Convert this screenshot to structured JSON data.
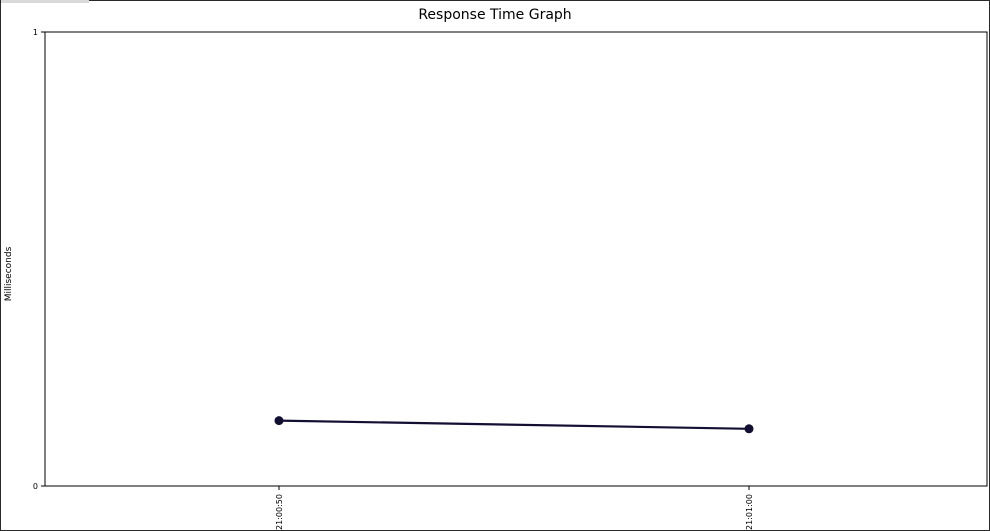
{
  "chart_data": {
    "type": "line",
    "title": "Response Time Graph",
    "ylabel": "Milliseconds",
    "xlabel": "",
    "ylim": [
      0,
      1
    ],
    "y_ticks": [
      "0",
      "1"
    ],
    "x_ticks": [
      "21:00:50",
      "21:01:00"
    ],
    "x": [
      "21:00:50",
      "21:01:00"
    ],
    "series": [
      {
        "values": [
          0.144,
          0.126
        ],
        "color": "#120f33"
      }
    ],
    "grid": false,
    "legend": "none"
  }
}
